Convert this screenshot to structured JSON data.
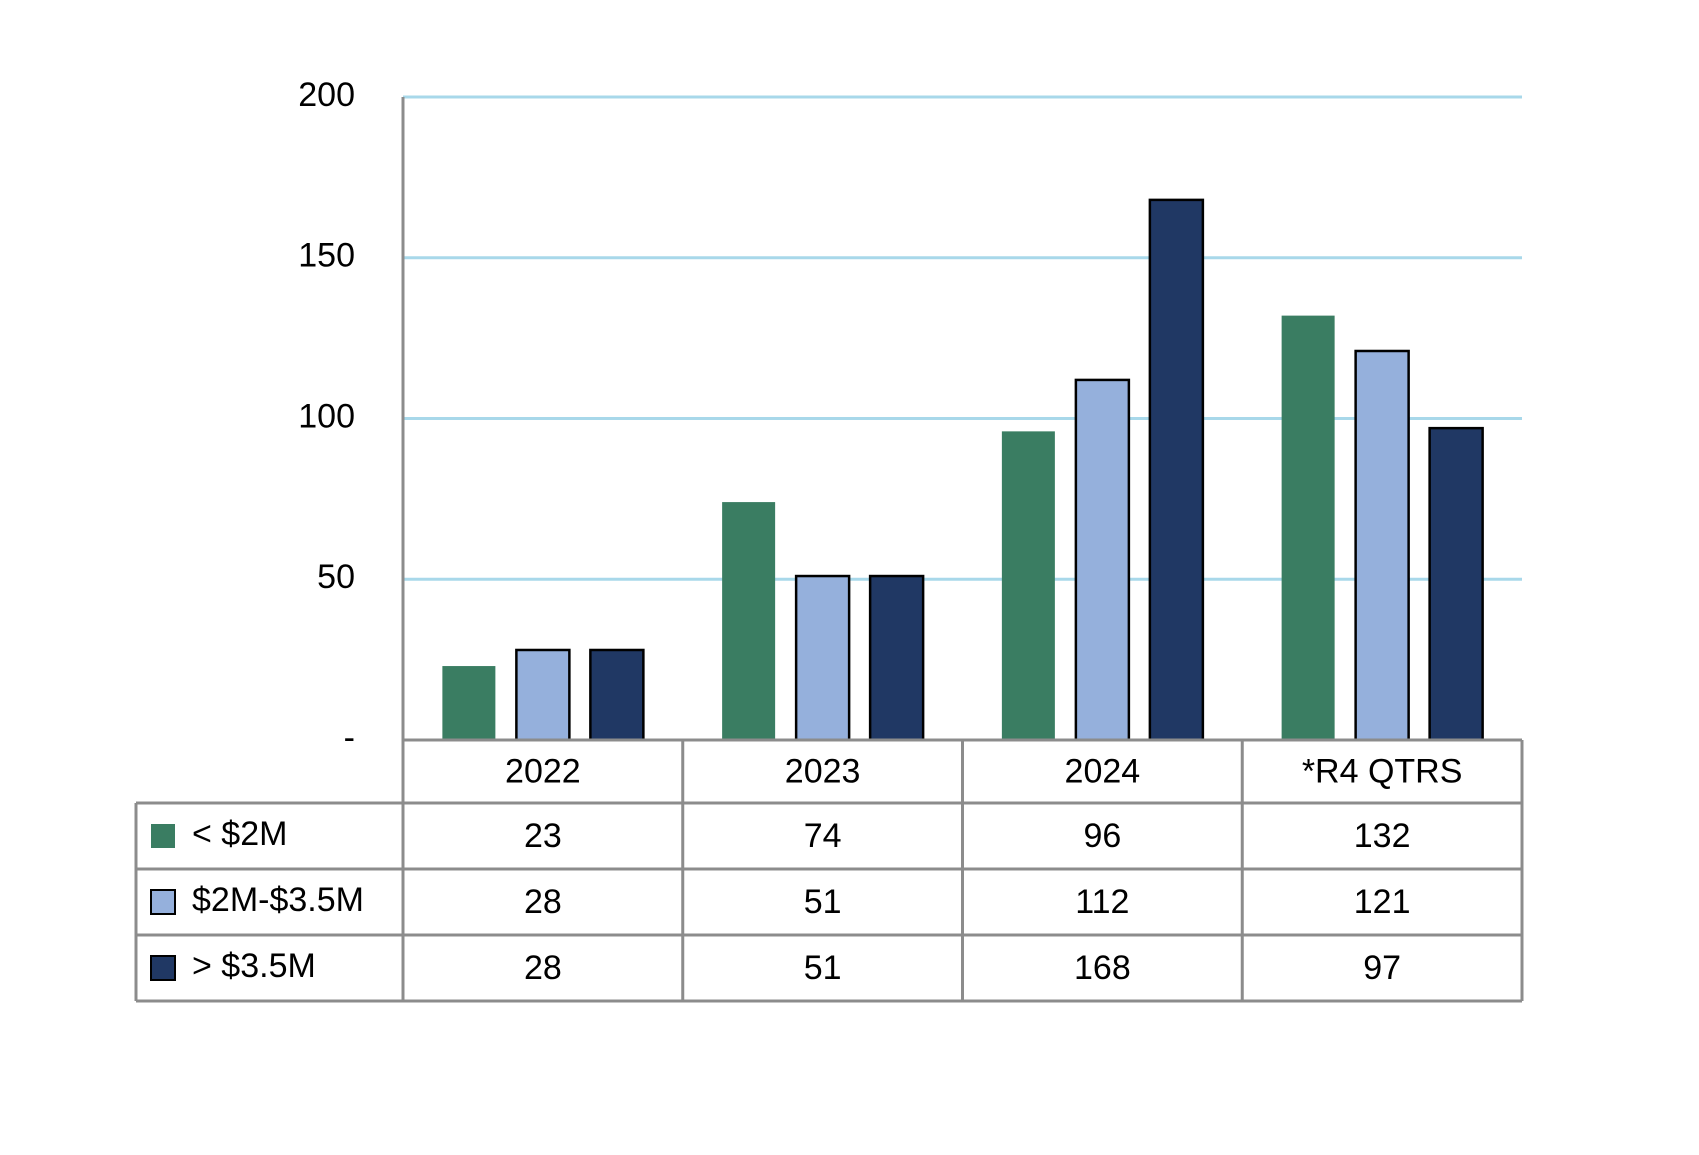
{
  "chart_data": {
    "type": "bar",
    "categories": [
      "2022",
      "2023",
      "2024",
      "*R4 QTRS"
    ],
    "series": [
      {
        "name": "< $2M",
        "color": "#3a7d62",
        "values": [
          23,
          74,
          96,
          132
        ]
      },
      {
        "name": "$2M-$3.5M",
        "color": "#95b0dc",
        "edgecolor": "#000000",
        "values": [
          28,
          51,
          112,
          121
        ]
      },
      {
        "name": "> $3.5M",
        "color": "#203864",
        "edgecolor": "#000000",
        "values": [
          28,
          51,
          168,
          97
        ]
      }
    ],
    "ylim": [
      0,
      200
    ],
    "yticks": [
      {
        "value": 0,
        "label": "-"
      },
      50,
      100,
      150,
      200
    ],
    "grid": true,
    "grid_color": "#a8d8ea",
    "data_table": true
  }
}
